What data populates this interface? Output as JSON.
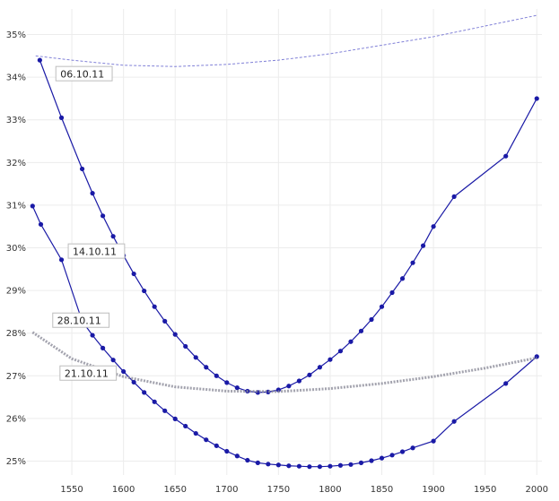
{
  "chart_data": {
    "type": "line",
    "title": "",
    "xlabel": "",
    "ylabel": "",
    "xlim": [
      1510,
      2005
    ],
    "ylim": [
      24.8,
      35.6
    ],
    "x_ticks": [
      1550,
      1600,
      1650,
      1700,
      1750,
      1800,
      1850,
      1900,
      1950,
      2000
    ],
    "y_ticks": [
      25,
      26,
      27,
      28,
      29,
      30,
      31,
      32,
      33,
      34,
      35
    ],
    "y_tick_labels": [
      "25%",
      "26%",
      "27%",
      "28%",
      "29%",
      "30%",
      "31%",
      "32%",
      "33%",
      "34%",
      "35%"
    ],
    "grid": true,
    "colors": {
      "primary": "#1a1aa6",
      "faded": "#6a6ad0",
      "gray": "#8c8c9a",
      "grid": "#ececec"
    },
    "series": [
      {
        "name": "06.10.11",
        "style": "dashed-faded",
        "x": [
          1515,
          1550,
          1600,
          1650,
          1700,
          1750,
          1800,
          1850,
          1900,
          1950,
          2000
        ],
        "y": [
          34.5,
          34.4,
          34.28,
          34.25,
          34.3,
          34.4,
          34.55,
          34.75,
          34.95,
          35.2,
          35.45
        ],
        "markers": false
      },
      {
        "name": "14.10.11",
        "style": "solid",
        "x": [
          1519,
          1540,
          1560,
          1570,
          1580,
          1590,
          1600,
          1610,
          1620,
          1630,
          1640,
          1650,
          1660,
          1670,
          1680,
          1690,
          1700,
          1710,
          1720,
          1730,
          1740,
          1750,
          1760,
          1770,
          1780,
          1790,
          1800,
          1810,
          1820,
          1830,
          1840,
          1850,
          1860,
          1870,
          1880,
          1890,
          1900,
          1920,
          1970,
          2000
        ],
        "y": [
          34.4,
          33.05,
          31.85,
          31.28,
          30.75,
          30.27,
          29.82,
          29.39,
          28.99,
          28.62,
          28.28,
          27.97,
          27.69,
          27.43,
          27.2,
          27.0,
          26.84,
          26.72,
          26.64,
          26.61,
          26.62,
          26.67,
          26.76,
          26.88,
          27.02,
          27.2,
          27.38,
          27.58,
          27.8,
          28.05,
          28.32,
          28.62,
          28.95,
          29.28,
          29.65,
          30.05,
          30.5,
          31.2,
          32.15,
          33.5
        ],
        "markers": true
      },
      {
        "name": "28.10.11",
        "style": "solid",
        "x": [
          1512,
          1520,
          1540,
          1560,
          1570,
          1580,
          1590,
          1600,
          1610,
          1620,
          1630,
          1640,
          1650,
          1660,
          1670,
          1680,
          1690,
          1700,
          1710,
          1720,
          1730,
          1740,
          1750,
          1760,
          1770,
          1780,
          1790,
          1800,
          1810,
          1820,
          1830,
          1840,
          1850,
          1860,
          1870,
          1880,
          1900,
          1920,
          1970,
          2000
        ],
        "y": [
          30.98,
          30.55,
          29.72,
          28.28,
          27.95,
          27.65,
          27.37,
          27.1,
          26.85,
          26.61,
          26.39,
          26.18,
          25.99,
          25.82,
          25.65,
          25.5,
          25.36,
          25.23,
          25.12,
          25.02,
          24.96,
          24.93,
          24.91,
          24.89,
          24.88,
          24.87,
          24.87,
          24.88,
          24.9,
          24.92,
          24.96,
          25.01,
          25.07,
          25.14,
          25.22,
          25.31,
          25.47,
          25.93,
          26.82,
          27.45
        ],
        "markers": true
      },
      {
        "name": "21.10.11",
        "style": "thick-gray",
        "x": [
          1512,
          1550,
          1600,
          1650,
          1700,
          1750,
          1800,
          1850,
          1900,
          1950,
          2000
        ],
        "y": [
          28.02,
          27.4,
          26.98,
          26.74,
          26.64,
          26.63,
          26.7,
          26.82,
          26.98,
          27.18,
          27.42
        ],
        "markers": false
      }
    ],
    "series_labels": [
      {
        "text": "06.10.11",
        "x": 1538,
        "y": 34.0
      },
      {
        "text": "14.10.11",
        "x": 1550,
        "y": 29.84
      },
      {
        "text": "28.10.11",
        "x": 1535,
        "y": 28.22
      },
      {
        "text": "21.10.11",
        "x": 1542,
        "y": 26.98
      }
    ]
  }
}
